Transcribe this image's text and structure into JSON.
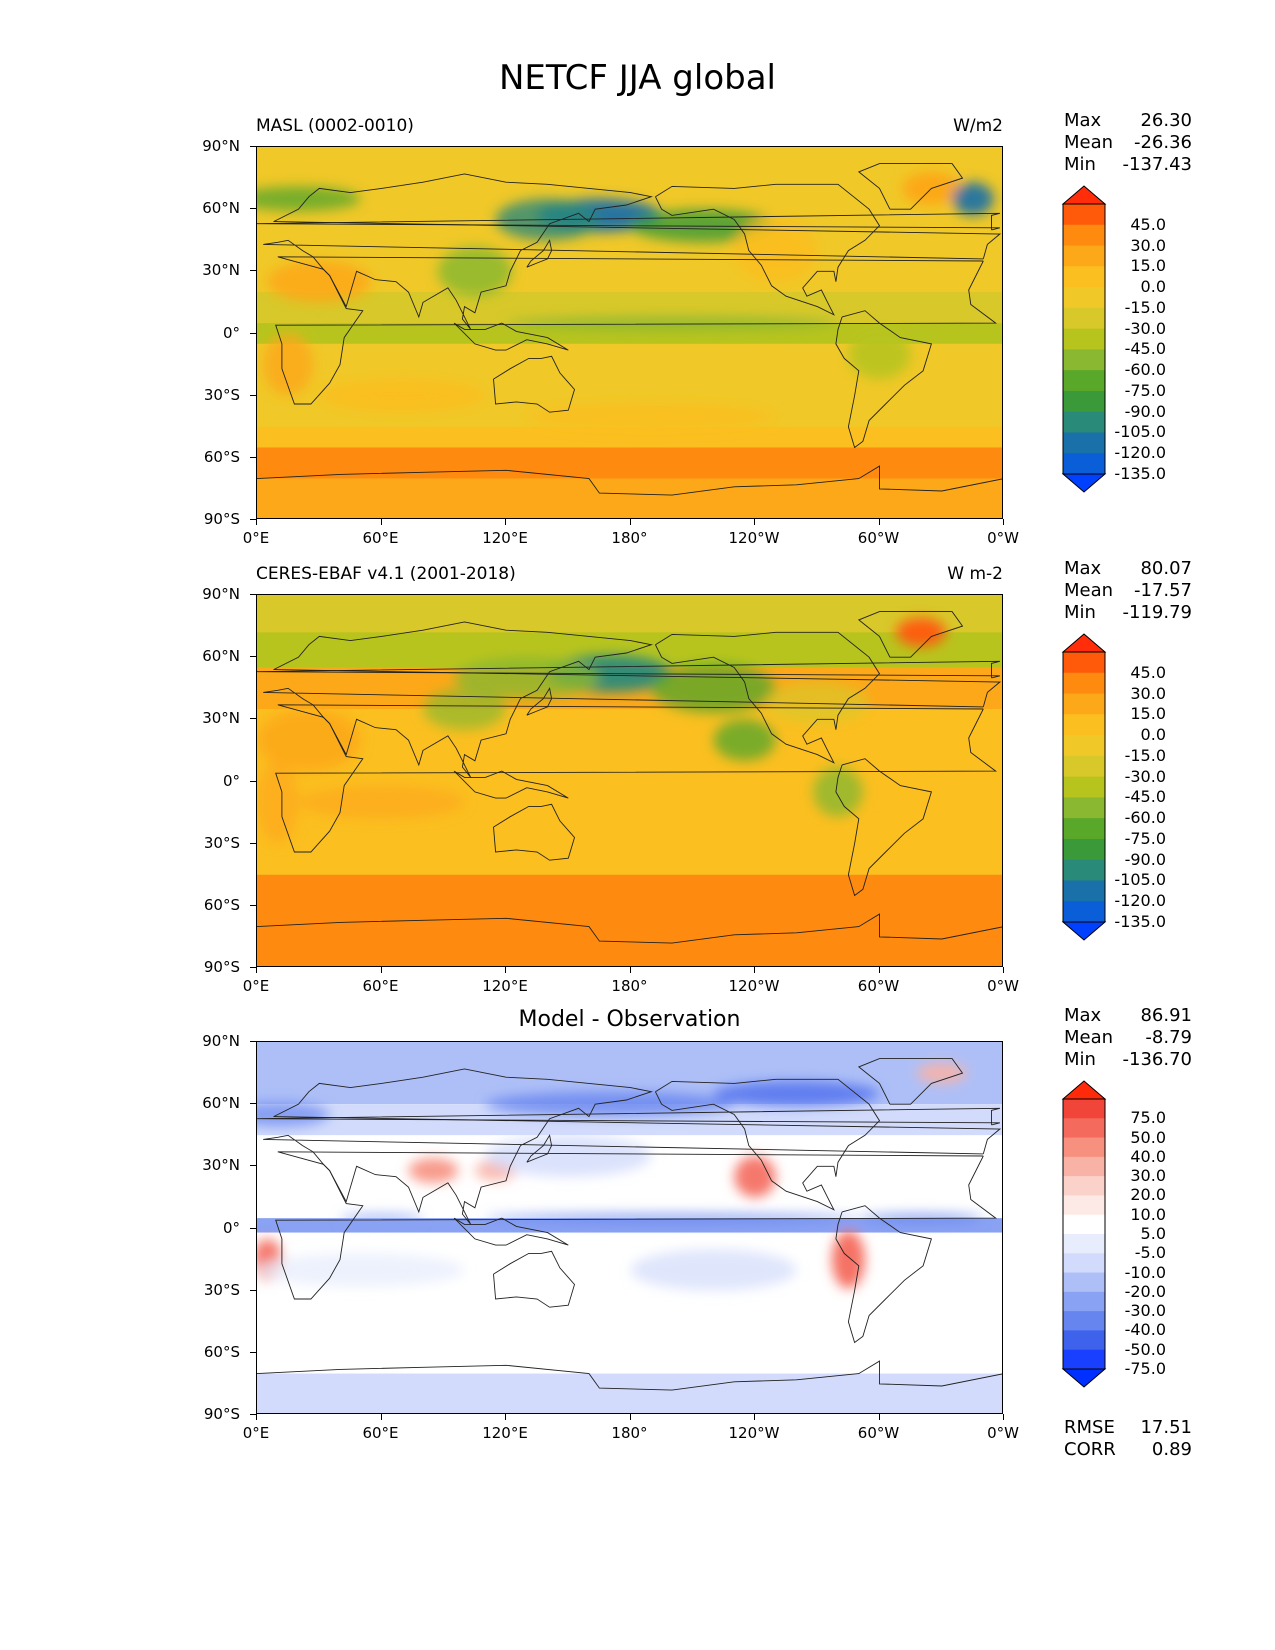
{
  "page": {
    "title": "NETCF JJA global"
  },
  "panels": [
    {
      "left_title": "MASL (0002-0010)",
      "center_title": "",
      "units": "W/m2",
      "stats": [
        {
          "label": "Max",
          "value": "26.30"
        },
        {
          "label": "Mean",
          "value": "-26.36"
        },
        {
          "label": "Min",
          "value": "-137.43"
        }
      ],
      "colorbar": {
        "levels": [
          "45.0",
          "30.0",
          "15.0",
          "0.0",
          "-15.0",
          "-30.0",
          "-45.0",
          "-60.0",
          "-75.0",
          "-90.0",
          "-105.0",
          "-120.0",
          "-135.0"
        ],
        "colors": [
          "#ff2d0a",
          "#ff5a0a",
          "#ff8a10",
          "#fda818",
          "#fbbf20",
          "#f0c828",
          "#d8c82a",
          "#b8c41e",
          "#8ab830",
          "#5aa82a",
          "#3a9a3a",
          "#2a8a7a",
          "#1a70a8",
          "#0a5ed8",
          "#0040ff"
        ]
      },
      "extra_stats": []
    },
    {
      "left_title": "CERES-EBAF v4.1 (2001-2018)",
      "center_title": "",
      "units": "W m-2",
      "stats": [
        {
          "label": "Max",
          "value": "80.07"
        },
        {
          "label": "Mean",
          "value": "-17.57"
        },
        {
          "label": "Min",
          "value": "-119.79"
        }
      ],
      "colorbar": {
        "levels": [
          "45.0",
          "30.0",
          "15.0",
          "0.0",
          "-15.0",
          "-30.0",
          "-45.0",
          "-60.0",
          "-75.0",
          "-90.0",
          "-105.0",
          "-120.0",
          "-135.0"
        ],
        "colors": [
          "#ff2d0a",
          "#ff5a0a",
          "#ff8a10",
          "#fda818",
          "#fbbf20",
          "#f0c828",
          "#d8c82a",
          "#b8c41e",
          "#8ab830",
          "#5aa82a",
          "#3a9a3a",
          "#2a8a7a",
          "#1a70a8",
          "#0a5ed8",
          "#0040ff"
        ]
      },
      "extra_stats": []
    },
    {
      "left_title": "",
      "center_title": "Model - Observation",
      "units": "",
      "stats": [
        {
          "label": "Max",
          "value": "86.91"
        },
        {
          "label": "Mean",
          "value": "-8.79"
        },
        {
          "label": "Min",
          "value": "-136.70"
        }
      ],
      "colorbar": {
        "levels": [
          "75.0",
          "50.0",
          "40.0",
          "30.0",
          "20.0",
          "10.0",
          "5.0",
          "-5.0",
          "-10.0",
          "-20.0",
          "-30.0",
          "-40.0",
          "-50.0",
          "-75.0"
        ],
        "colors": [
          "#ff2a0a",
          "#f2453a",
          "#f46a5c",
          "#f7907f",
          "#f9b2a6",
          "#fbd2ca",
          "#fde9e5",
          "#ffffff",
          "#e8edfd",
          "#d2dbfb",
          "#aebff7",
          "#8aa2f3",
          "#6685ef",
          "#3e62ec",
          "#1a40ff",
          "#0030ff"
        ]
      },
      "extra_stats": [
        {
          "label": "RMSE",
          "value": "17.51"
        },
        {
          "label": "CORR",
          "value": "0.89"
        }
      ]
    }
  ],
  "axes": {
    "lat_ticks": [
      "90°N",
      "60°N",
      "30°N",
      "0°",
      "30°S",
      "60°S",
      "90°S"
    ],
    "lon_ticks": [
      "0°E",
      "60°E",
      "120°E",
      "180°",
      "120°W",
      "60°W",
      "0°W"
    ]
  },
  "chart_data": [
    {
      "type": "heatmap",
      "title": "MASL (0002-0010)",
      "units": "W/m2",
      "x_ticks": [
        "0°E",
        "60°E",
        "120°E",
        "180°",
        "120°W",
        "60°W",
        "0°W"
      ],
      "y_ticks": [
        "90°N",
        "60°N",
        "30°N",
        "0°",
        "30°S",
        "60°S",
        "90°S"
      ],
      "xlim": [
        0,
        360
      ],
      "ylim": [
        -90,
        90
      ],
      "levels": [
        -135,
        -120,
        -105,
        -90,
        -75,
        -60,
        -45,
        -30,
        -15,
        0,
        15,
        30,
        45
      ],
      "stats": {
        "max": 26.3,
        "mean": -26.36,
        "min": -137.43
      }
    },
    {
      "type": "heatmap",
      "title": "CERES-EBAF v4.1 (2001-2018)",
      "units": "W m-2",
      "x_ticks": [
        "0°E",
        "60°E",
        "120°E",
        "180°",
        "120°W",
        "60°W",
        "0°W"
      ],
      "y_ticks": [
        "90°N",
        "60°N",
        "30°N",
        "0°",
        "30°S",
        "60°S",
        "90°S"
      ],
      "xlim": [
        0,
        360
      ],
      "ylim": [
        -90,
        90
      ],
      "levels": [
        -135,
        -120,
        -105,
        -90,
        -75,
        -60,
        -45,
        -30,
        -15,
        0,
        15,
        30,
        45
      ],
      "stats": {
        "max": 80.07,
        "mean": -17.57,
        "min": -119.79
      }
    },
    {
      "type": "heatmap",
      "title": "Model - Observation",
      "x_ticks": [
        "0°E",
        "60°E",
        "120°E",
        "180°",
        "120°W",
        "60°W",
        "0°W"
      ],
      "y_ticks": [
        "90°N",
        "60°N",
        "30°N",
        "0°",
        "30°S",
        "60°S",
        "90°S"
      ],
      "xlim": [
        0,
        360
      ],
      "ylim": [
        -90,
        90
      ],
      "levels": [
        -75,
        -50,
        -40,
        -30,
        -20,
        -10,
        -5,
        5,
        10,
        20,
        30,
        40,
        50,
        75
      ],
      "stats": {
        "max": 86.91,
        "mean": -8.79,
        "min": -136.7,
        "rmse": 17.51,
        "corr": 0.89
      }
    }
  ]
}
